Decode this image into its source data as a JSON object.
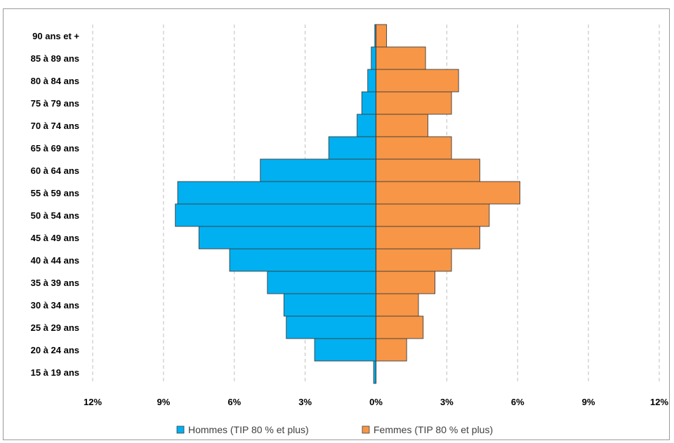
{
  "chart_data": {
    "type": "bar",
    "orientation": "horizontal",
    "categories": [
      "15 à 19 ans",
      "20 à 24 ans",
      "25 à 29 ans",
      "30 à 34 ans",
      "35 à 39 ans",
      "40 à 44 ans",
      "45 à 49 ans",
      "50 à 54 ans",
      "55 à 59 ans",
      "60 à 64 ans",
      "65 à 69 ans",
      "70 à 74 ans",
      "75 à 79 ans",
      "80 à 84 ans",
      "85 à 89 ans",
      "90 ans et +"
    ],
    "series": [
      {
        "name": "Hommes (TIP 80 % et plus)",
        "color": "#00b0f0",
        "values": [
          -0.1,
          -2.6,
          -3.8,
          -3.9,
          -4.6,
          -6.2,
          -7.5,
          -8.5,
          -8.4,
          -4.9,
          -2.0,
          -0.8,
          -0.6,
          -0.35,
          -0.2,
          -0.05
        ]
      },
      {
        "name": "Femmes (TIP 80 % et plus)",
        "color": "#f79646",
        "values": [
          0.0,
          1.3,
          2.0,
          1.8,
          2.5,
          3.2,
          4.4,
          4.8,
          6.1,
          4.4,
          3.2,
          2.2,
          3.2,
          3.5,
          2.1,
          0.45
        ]
      }
    ],
    "xlim": [
      -12,
      12
    ],
    "xticks": [
      -12,
      -9,
      -6,
      -3,
      0,
      3,
      6,
      9,
      12
    ],
    "xtick_labels": [
      "12%",
      "9%",
      "6%",
      "3%",
      "0%",
      "3%",
      "6%",
      "9%",
      "12%"
    ],
    "grid": true,
    "legend_position": "bottom",
    "title": "",
    "xlabel": "",
    "ylabel": ""
  }
}
